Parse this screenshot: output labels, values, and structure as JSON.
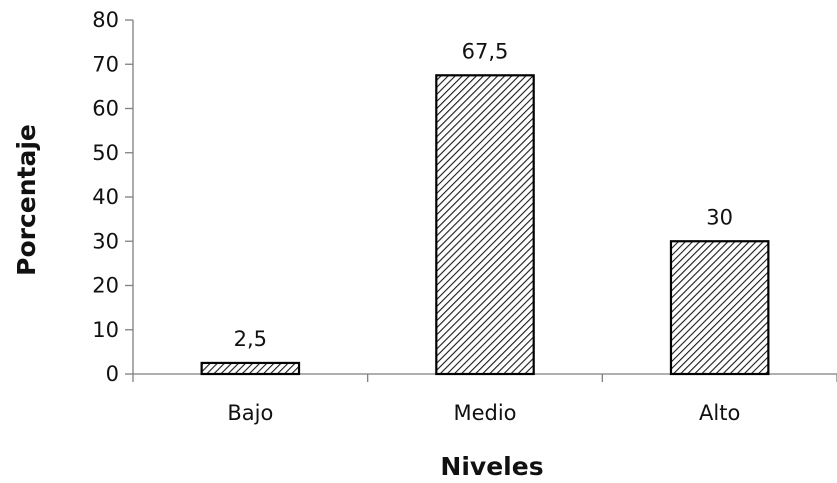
{
  "chart_data": {
    "type": "bar",
    "categories": [
      "Bajo",
      "Medio",
      "Alto"
    ],
    "values": [
      2.5,
      67.5,
      30
    ],
    "data_labels": [
      "2,5",
      "67,5",
      "30"
    ],
    "title": "",
    "xlabel": "Niveles",
    "ylabel": "Porcentaje",
    "ylim": [
      0,
      80
    ],
    "yticks": [
      0,
      10,
      20,
      30,
      40,
      50,
      60,
      70,
      80
    ],
    "grid": false,
    "legend": "none",
    "bar_fill": "hatched",
    "bar_color": "#000000"
  }
}
